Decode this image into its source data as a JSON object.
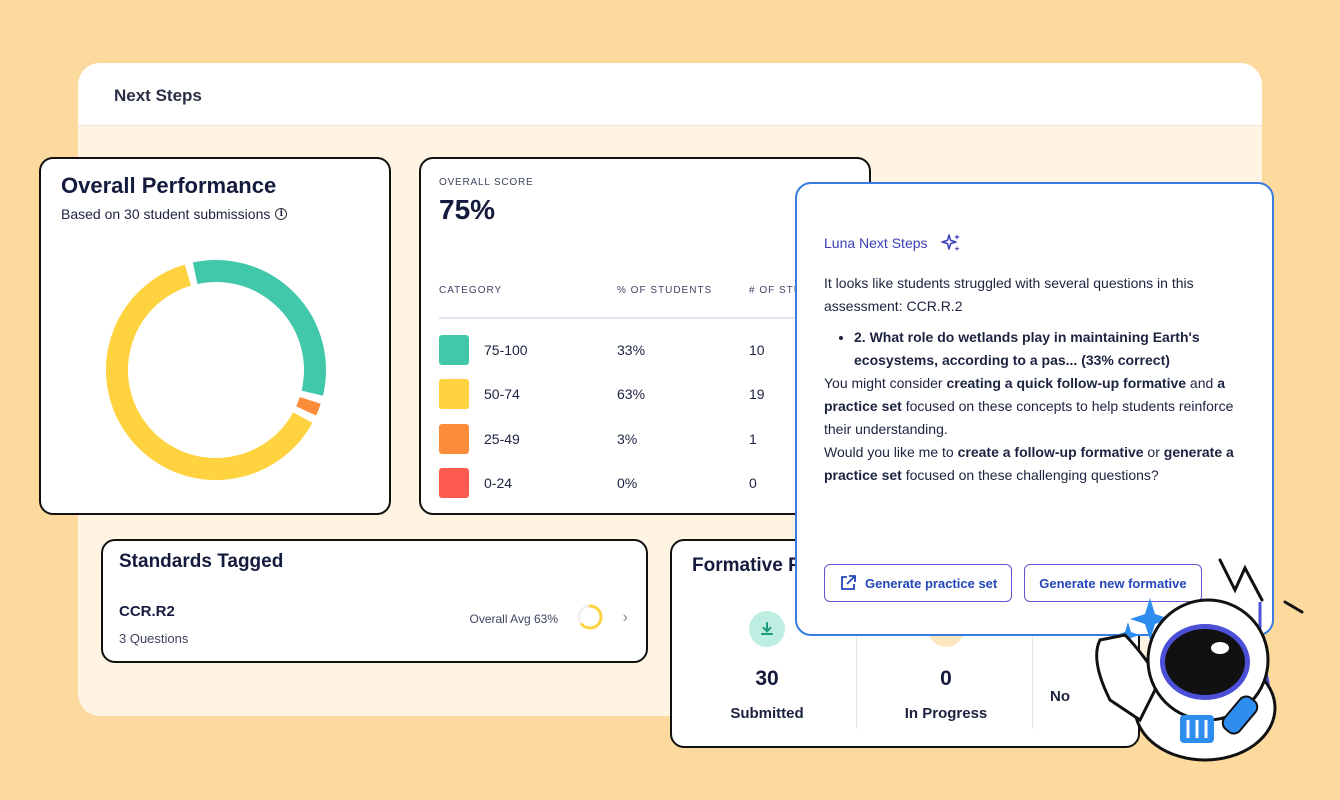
{
  "backdrop": {
    "title": "Next Steps"
  },
  "performance": {
    "title": "Overall Performance",
    "subtitle": "Based on 30 student submissions",
    "info_icon": "i",
    "segments": [
      {
        "name": "75-100",
        "percent": 33,
        "color": "#41c8aa"
      },
      {
        "name": "25-49",
        "percent": 3,
        "color": "#fb8c3a"
      },
      {
        "name": "50-74",
        "percent": 63,
        "color": "#ffd340"
      }
    ]
  },
  "score": {
    "label": "OVERALL SCORE",
    "value": "75%",
    "headers": {
      "category": "CATEGORY",
      "pct": "% OF STUDENTS",
      "count": "# OF STU"
    },
    "rows": [
      {
        "category": "75-100",
        "pct": "33%",
        "count": "10",
        "color": "#41c8aa"
      },
      {
        "category": "50-74",
        "pct": "63%",
        "count": "19",
        "color": "#ffd340"
      },
      {
        "category": "25-49",
        "pct": "3%",
        "count": "1",
        "color": "#fb8c3a"
      },
      {
        "category": "0-24",
        "pct": "0%",
        "count": "0",
        "color": "#fd5a4f"
      }
    ]
  },
  "standards": {
    "title": "Standards Tagged",
    "code": "CCR.R2",
    "questions": "3 Questions",
    "avg_label": "Overall Avg 63%",
    "avg_value": 63,
    "chevron": "›"
  },
  "formative": {
    "title": "Formative P",
    "stats": [
      {
        "num": "30",
        "label": "Submitted"
      },
      {
        "num": "0",
        "label": "In Progress"
      },
      {
        "num": "",
        "label": "No"
      }
    ]
  },
  "luna": {
    "heading": "Luna Next Steps",
    "intro": "It looks like students struggled with several questions in this assessment: CCR.R.2",
    "bullet": "2. What role do wetlands play in maintaining Earth's ecosystems, according to a pas... (33% correct)",
    "p1a": "You might consider ",
    "p1b": "creating a quick follow-up formative",
    "p1c": " and ",
    "p1d": "a practice set",
    "p1e": " focused on these concepts to help students reinforce their understanding.",
    "p2a": "Would you like me to ",
    "p2b": "create a follow-up formative",
    "p2c": " or ",
    "p2d": "generate a practice set",
    "p2e": " focused on these challenging questions?",
    "btn_practice": "Generate practice set",
    "btn_formative": "Generate new formative"
  }
}
